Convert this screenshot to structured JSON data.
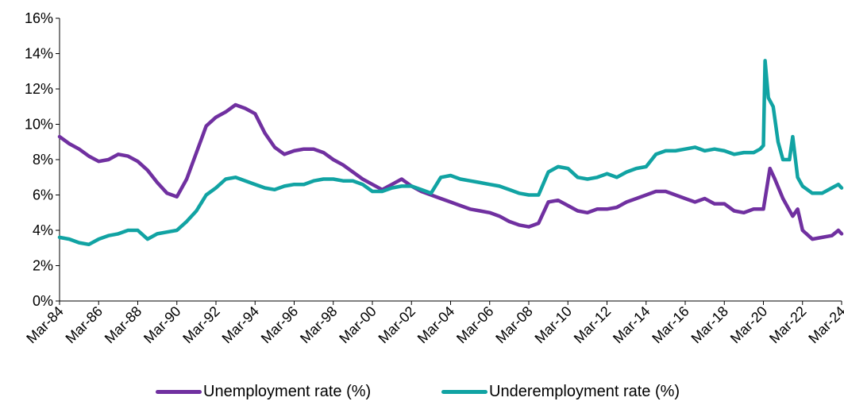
{
  "chart_data": {
    "type": "line",
    "title": "",
    "xlabel": "",
    "ylabel": "",
    "ylim": [
      0,
      16
    ],
    "xlim": [
      "1984-03",
      "2024-03"
    ],
    "y_ticks": [
      "0%",
      "2%",
      "4%",
      "6%",
      "8%",
      "10%",
      "12%",
      "14%",
      "16%"
    ],
    "x_ticks": [
      "Mar-84",
      "Mar-86",
      "Mar-88",
      "Mar-90",
      "Mar-92",
      "Mar-94",
      "Mar-96",
      "Mar-98",
      "Mar-00",
      "Mar-02",
      "Mar-04",
      "Mar-06",
      "Mar-08",
      "Mar-10",
      "Mar-12",
      "Mar-14",
      "Mar-16",
      "Mar-18",
      "Mar-20",
      "Mar-22",
      "Mar-24"
    ],
    "grid": false,
    "legend_position": "bottom",
    "series": [
      {
        "name": "Unemployment rate (%)",
        "color": "#7030A0",
        "points": [
          [
            "1984-03",
            9.3
          ],
          [
            "1984-09",
            8.9
          ],
          [
            "1985-03",
            8.6
          ],
          [
            "1985-09",
            8.2
          ],
          [
            "1986-03",
            7.9
          ],
          [
            "1986-09",
            8.0
          ],
          [
            "1987-03",
            8.3
          ],
          [
            "1987-09",
            8.2
          ],
          [
            "1988-03",
            7.9
          ],
          [
            "1988-09",
            7.4
          ],
          [
            "1989-03",
            6.7
          ],
          [
            "1989-09",
            6.1
          ],
          [
            "1990-03",
            5.9
          ],
          [
            "1990-09",
            6.9
          ],
          [
            "1991-03",
            8.4
          ],
          [
            "1991-09",
            9.9
          ],
          [
            "1992-03",
            10.4
          ],
          [
            "1992-09",
            10.7
          ],
          [
            "1993-03",
            11.1
          ],
          [
            "1993-09",
            10.9
          ],
          [
            "1994-03",
            10.6
          ],
          [
            "1994-09",
            9.5
          ],
          [
            "1995-03",
            8.7
          ],
          [
            "1995-09",
            8.3
          ],
          [
            "1996-03",
            8.5
          ],
          [
            "1996-09",
            8.6
          ],
          [
            "1997-03",
            8.6
          ],
          [
            "1997-09",
            8.4
          ],
          [
            "1998-03",
            8.0
          ],
          [
            "1998-09",
            7.7
          ],
          [
            "1999-03",
            7.3
          ],
          [
            "1999-09",
            6.9
          ],
          [
            "2000-03",
            6.6
          ],
          [
            "2000-09",
            6.3
          ],
          [
            "2001-03",
            6.6
          ],
          [
            "2001-09",
            6.9
          ],
          [
            "2002-03",
            6.5
          ],
          [
            "2002-09",
            6.2
          ],
          [
            "2003-03",
            6.0
          ],
          [
            "2003-09",
            5.8
          ],
          [
            "2004-03",
            5.6
          ],
          [
            "2004-09",
            5.4
          ],
          [
            "2005-03",
            5.2
          ],
          [
            "2005-09",
            5.1
          ],
          [
            "2006-03",
            5.0
          ],
          [
            "2006-09",
            4.8
          ],
          [
            "2007-03",
            4.5
          ],
          [
            "2007-09",
            4.3
          ],
          [
            "2008-03",
            4.2
          ],
          [
            "2008-09",
            4.4
          ],
          [
            "2009-03",
            5.6
          ],
          [
            "2009-09",
            5.7
          ],
          [
            "2010-03",
            5.4
          ],
          [
            "2010-09",
            5.1
          ],
          [
            "2011-03",
            5.0
          ],
          [
            "2011-09",
            5.2
          ],
          [
            "2012-03",
            5.2
          ],
          [
            "2012-09",
            5.3
          ],
          [
            "2013-03",
            5.6
          ],
          [
            "2013-09",
            5.8
          ],
          [
            "2014-03",
            6.0
          ],
          [
            "2014-09",
            6.2
          ],
          [
            "2015-03",
            6.2
          ],
          [
            "2015-09",
            6.0
          ],
          [
            "2016-03",
            5.8
          ],
          [
            "2016-09",
            5.6
          ],
          [
            "2017-03",
            5.8
          ],
          [
            "2017-09",
            5.5
          ],
          [
            "2018-03",
            5.5
          ],
          [
            "2018-09",
            5.1
          ],
          [
            "2019-03",
            5.0
          ],
          [
            "2019-09",
            5.2
          ],
          [
            "2020-03",
            5.2
          ],
          [
            "2020-07",
            7.5
          ],
          [
            "2020-10",
            6.9
          ],
          [
            "2021-03",
            5.8
          ],
          [
            "2021-09",
            4.8
          ],
          [
            "2021-12",
            5.2
          ],
          [
            "2022-03",
            4.0
          ],
          [
            "2022-09",
            3.5
          ],
          [
            "2023-03",
            3.6
          ],
          [
            "2023-09",
            3.7
          ],
          [
            "2024-01",
            4.0
          ],
          [
            "2024-03",
            3.8
          ]
        ]
      },
      {
        "name": "Underemployment rate (%)",
        "color": "#11A3A3",
        "points": [
          [
            "1984-03",
            3.6
          ],
          [
            "1984-09",
            3.5
          ],
          [
            "1985-03",
            3.3
          ],
          [
            "1985-09",
            3.2
          ],
          [
            "1986-03",
            3.5
          ],
          [
            "1986-09",
            3.7
          ],
          [
            "1987-03",
            3.8
          ],
          [
            "1987-09",
            4.0
          ],
          [
            "1988-03",
            4.0
          ],
          [
            "1988-09",
            3.5
          ],
          [
            "1989-03",
            3.8
          ],
          [
            "1989-09",
            3.9
          ],
          [
            "1990-03",
            4.0
          ],
          [
            "1990-09",
            4.5
          ],
          [
            "1991-03",
            5.1
          ],
          [
            "1991-09",
            6.0
          ],
          [
            "1992-03",
            6.4
          ],
          [
            "1992-09",
            6.9
          ],
          [
            "1993-03",
            7.0
          ],
          [
            "1993-09",
            6.8
          ],
          [
            "1994-03",
            6.6
          ],
          [
            "1994-09",
            6.4
          ],
          [
            "1995-03",
            6.3
          ],
          [
            "1995-09",
            6.5
          ],
          [
            "1996-03",
            6.6
          ],
          [
            "1996-09",
            6.6
          ],
          [
            "1997-03",
            6.8
          ],
          [
            "1997-09",
            6.9
          ],
          [
            "1998-03",
            6.9
          ],
          [
            "1998-09",
            6.8
          ],
          [
            "1999-03",
            6.8
          ],
          [
            "1999-09",
            6.6
          ],
          [
            "2000-03",
            6.2
          ],
          [
            "2000-09",
            6.2
          ],
          [
            "2001-03",
            6.4
          ],
          [
            "2001-09",
            6.5
          ],
          [
            "2002-03",
            6.5
          ],
          [
            "2002-09",
            6.3
          ],
          [
            "2003-03",
            6.1
          ],
          [
            "2003-09",
            7.0
          ],
          [
            "2004-03",
            7.1
          ],
          [
            "2004-09",
            6.9
          ],
          [
            "2005-03",
            6.8
          ],
          [
            "2005-09",
            6.7
          ],
          [
            "2006-03",
            6.6
          ],
          [
            "2006-09",
            6.5
          ],
          [
            "2007-03",
            6.3
          ],
          [
            "2007-09",
            6.1
          ],
          [
            "2008-03",
            6.0
          ],
          [
            "2008-09",
            6.0
          ],
          [
            "2009-03",
            7.3
          ],
          [
            "2009-09",
            7.6
          ],
          [
            "2010-03",
            7.5
          ],
          [
            "2010-09",
            7.0
          ],
          [
            "2011-03",
            6.9
          ],
          [
            "2011-09",
            7.0
          ],
          [
            "2012-03",
            7.2
          ],
          [
            "2012-09",
            7.0
          ],
          [
            "2013-03",
            7.3
          ],
          [
            "2013-09",
            7.5
          ],
          [
            "2014-03",
            7.6
          ],
          [
            "2014-09",
            8.3
          ],
          [
            "2015-03",
            8.5
          ],
          [
            "2015-09",
            8.5
          ],
          [
            "2016-03",
            8.6
          ],
          [
            "2016-09",
            8.7
          ],
          [
            "2017-03",
            8.5
          ],
          [
            "2017-09",
            8.6
          ],
          [
            "2018-03",
            8.5
          ],
          [
            "2018-09",
            8.3
          ],
          [
            "2019-03",
            8.4
          ],
          [
            "2019-09",
            8.4
          ],
          [
            "2020-01",
            8.6
          ],
          [
            "2020-03",
            8.8
          ],
          [
            "2020-04",
            13.6
          ],
          [
            "2020-06",
            11.5
          ],
          [
            "2020-09",
            11.0
          ],
          [
            "2020-12",
            9.0
          ],
          [
            "2021-03",
            8.0
          ],
          [
            "2021-07",
            8.0
          ],
          [
            "2021-09",
            9.3
          ],
          [
            "2021-12",
            7.0
          ],
          [
            "2022-03",
            6.5
          ],
          [
            "2022-09",
            6.1
          ],
          [
            "2023-03",
            6.1
          ],
          [
            "2023-09",
            6.4
          ],
          [
            "2024-01",
            6.6
          ],
          [
            "2024-03",
            6.4
          ]
        ]
      }
    ]
  }
}
